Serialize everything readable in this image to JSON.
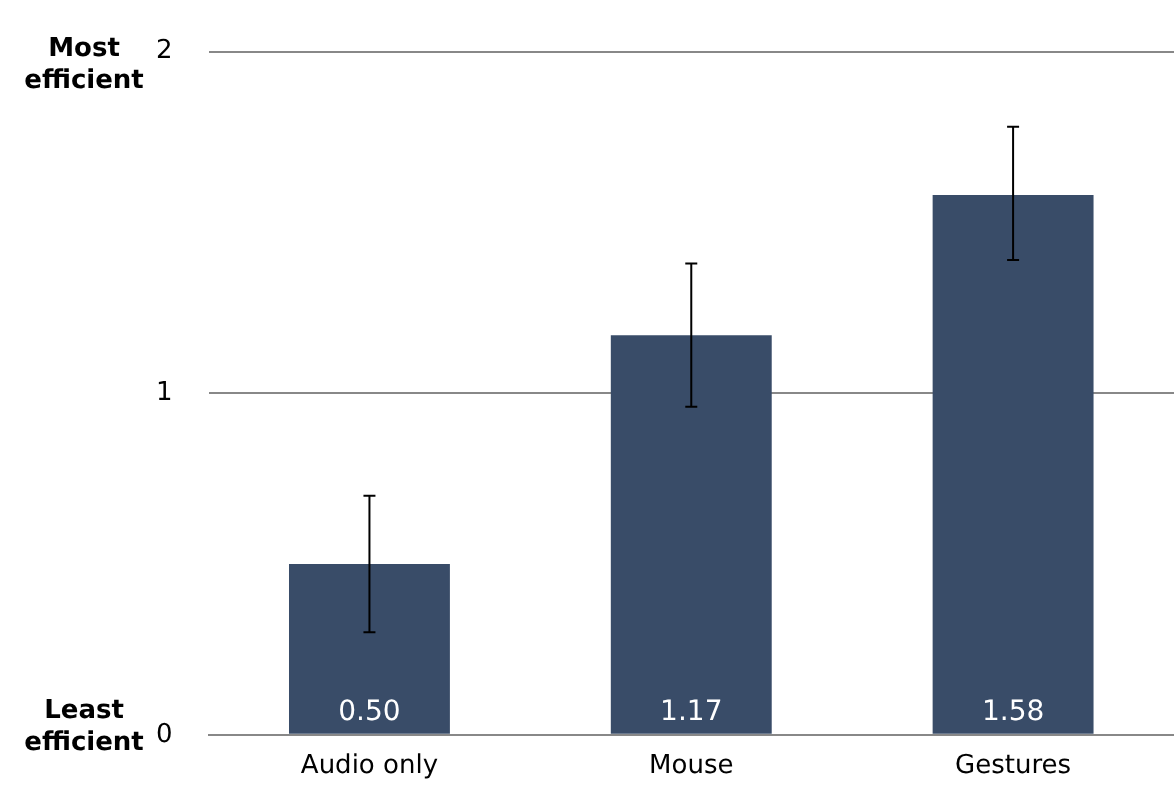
{
  "chart_data": {
    "type": "bar",
    "categories": [
      "Audio only",
      "Mouse",
      "Gestures"
    ],
    "values": [
      0.5,
      1.17,
      1.58
    ],
    "color": "#394c68",
    "errors": [
      [
        0.3,
        0.7
      ],
      [
        0.96,
        1.38
      ],
      [
        1.39,
        1.78
      ]
    ],
    "value_labels": [
      "0.50",
      "1.17",
      "1.58"
    ],
    "ylim": [
      0,
      2
    ],
    "yticks": [
      0,
      1,
      2
    ],
    "grid": "y",
    "legend": false,
    "annotations": [
      "Most\nefficient",
      "Least\nefficient"
    ]
  }
}
